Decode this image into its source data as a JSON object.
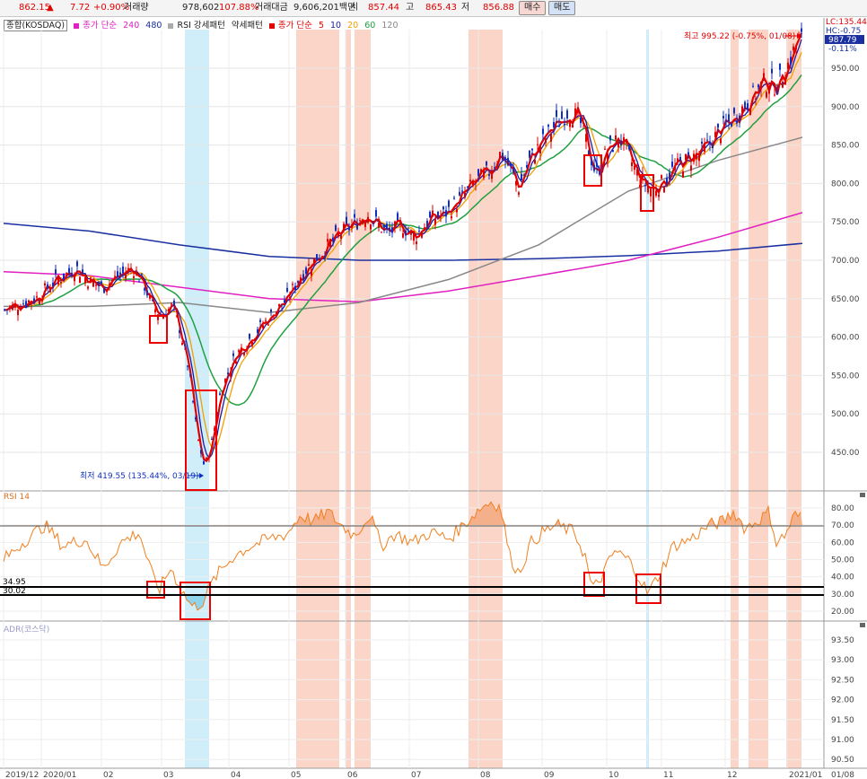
{
  "quote_bar": {
    "price": "862.15",
    "change_arrow": "▲",
    "change": "7.72",
    "change_pct": "+0.90%",
    "volume_label": "거래량",
    "volume": "978,602",
    "volume_ratio": "107.88%",
    "turnover_label": "거래대금",
    "turnover": "9,606,201백만",
    "open_label": "시",
    "open": "857.44",
    "high_label": "고",
    "high": "865.43",
    "low_label": "저",
    "low": "856.88",
    "buy_label": "매수",
    "sell_label": "매도"
  },
  "legend": {
    "index": "종합(KOSDAQ)",
    "ma_long_label": "종가 단순",
    "ma_long_240": "240",
    "ma_long_480": "480",
    "rsi_label": "RSI 강세패턴",
    "rsi_weak": "약세패턴",
    "ma_short_label": "종가 단순",
    "ma5": "5",
    "ma10": "10",
    "ma20": "20",
    "ma60": "60",
    "ma120": "120"
  },
  "right_labels": {
    "lc": "LC:135.44",
    "hc": "HC:-0.75",
    "last": "987.79",
    "pct": "-0.11%"
  },
  "annotations": {
    "high": "최고 995.22 (-0.75%, 01/08)",
    "low": "최저 419.55 (135.44%, 03/19)"
  },
  "price_axis": [
    "950.00",
    "900.00",
    "850.00",
    "800.00",
    "750.00",
    "700.00",
    "650.00",
    "600.00",
    "550.00",
    "500.00",
    "450.00"
  ],
  "rsi_panel": {
    "title": "RSI 14",
    "axis": [
      "80.00",
      "70.00",
      "60.00",
      "50.00",
      "40.00",
      "30.00",
      "20.00"
    ],
    "levels": [
      "34.95",
      "30.02"
    ]
  },
  "adr_panel": {
    "title": "ADR(코스닥)",
    "axis": [
      "93.50",
      "93.00",
      "92.50",
      "92.00",
      "91.50",
      "91.00",
      "90.50"
    ]
  },
  "time_axis": [
    "2019/12",
    "2020/01",
    "02",
    "03",
    "04",
    "05",
    "06",
    "07",
    "08",
    "09",
    "10",
    "11",
    "12",
    "2021/01",
    "01/08"
  ],
  "colors": {
    "up": "#e00000",
    "down": "#1030c0",
    "ma5": "#e00000",
    "ma10": "#1a1aa0",
    "ma20": "#f0a000",
    "ma60": "#20a040",
    "ma120": "#888888",
    "ma240": "#e020c0",
    "ma480": "#1a30a0",
    "rsi": "#f08020",
    "overbought_band": "#fbd5c8",
    "oversold_band": "#cfeefa",
    "highlight_box": "#ee0000"
  }
}
